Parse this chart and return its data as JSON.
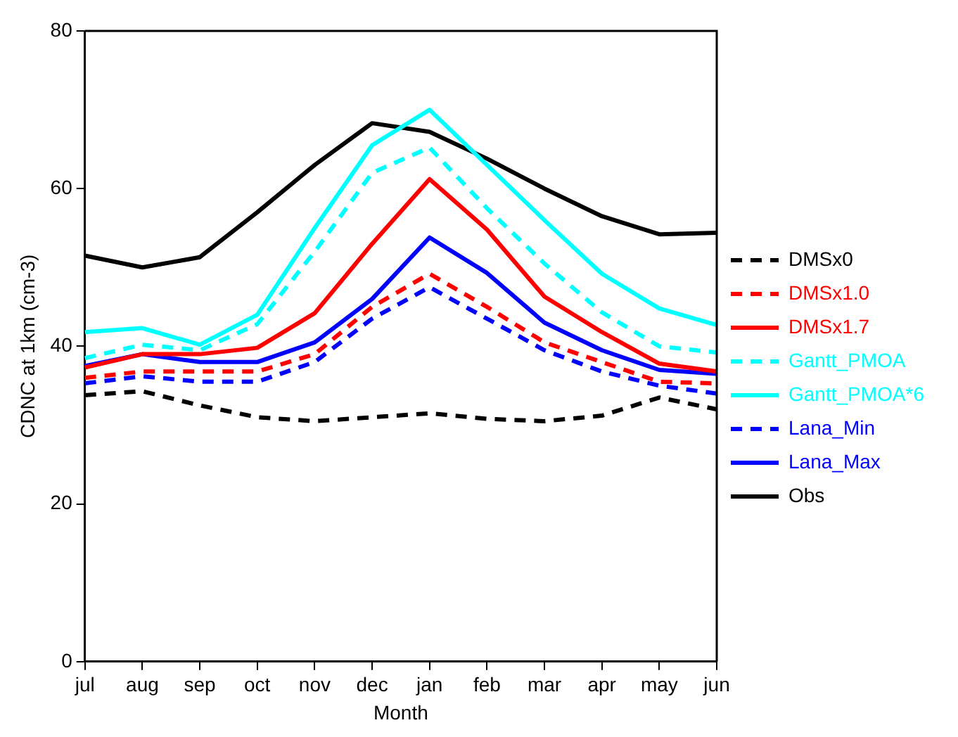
{
  "chart_data": {
    "type": "line",
    "xlabel": "Month",
    "ylabel": "CDNC at 1km (cm-3)",
    "categories": [
      "jul",
      "aug",
      "sep",
      "oct",
      "nov",
      "dec",
      "jan",
      "feb",
      "mar",
      "apr",
      "may",
      "jun"
    ],
    "ylim": [
      0,
      80
    ],
    "yticks": [
      0,
      20,
      40,
      60,
      80
    ],
    "grid": false,
    "legend": "right",
    "marker": "none",
    "series": [
      {
        "name": "DMSx0",
        "color": "#000000",
        "line_style": "dashed",
        "values": [
          33.8,
          34.3,
          32.5,
          31,
          30.5,
          31,
          31.5,
          30.8,
          30.5,
          31.2,
          33.5,
          32
        ]
      },
      {
        "name": "DMSx1.0",
        "color": "#ff0000",
        "line_style": "dashed",
        "values": [
          36,
          36.8,
          36.8,
          36.8,
          39,
          45,
          49.2,
          45,
          40.5,
          38,
          35.5,
          35.3
        ]
      },
      {
        "name": "DMSx1.7",
        "color": "#ff0000",
        "line_style": "solid",
        "values": [
          37.3,
          39,
          39,
          39.8,
          44.2,
          53,
          61.2,
          54.8,
          46.3,
          41.8,
          37.8,
          36.8
        ]
      },
      {
        "name": "Gantt_PMOA",
        "color": "#00ffff",
        "line_style": "dashed",
        "values": [
          38.5,
          40.2,
          39.5,
          42.8,
          52,
          62,
          65.2,
          57.5,
          50.5,
          44.3,
          40,
          39.2
        ]
      },
      {
        "name": "Gantt_PMOA*6",
        "color": "#00ffff",
        "line_style": "solid",
        "values": [
          41.8,
          42.3,
          40.2,
          44,
          55,
          65.5,
          70,
          63,
          56,
          49.2,
          44.8,
          42.7
        ]
      },
      {
        "name": "Lana_Min",
        "color": "#0000ff",
        "line_style": "dashed",
        "values": [
          35.3,
          36.2,
          35.5,
          35.5,
          38,
          43.5,
          47.5,
          43.5,
          39.5,
          36.8,
          35,
          34
        ]
      },
      {
        "name": "Lana_Max",
        "color": "#0000ff",
        "line_style": "solid",
        "values": [
          37.5,
          39,
          38,
          38,
          40.5,
          46,
          53.8,
          49.3,
          43,
          39.5,
          37,
          36.5
        ]
      },
      {
        "name": "Obs",
        "color": "#000000",
        "line_style": "solid",
        "values": [
          51.5,
          50,
          51.3,
          57,
          63,
          68.3,
          67.2,
          63.8,
          60,
          56.5,
          54.2,
          54.4
        ]
      }
    ]
  }
}
